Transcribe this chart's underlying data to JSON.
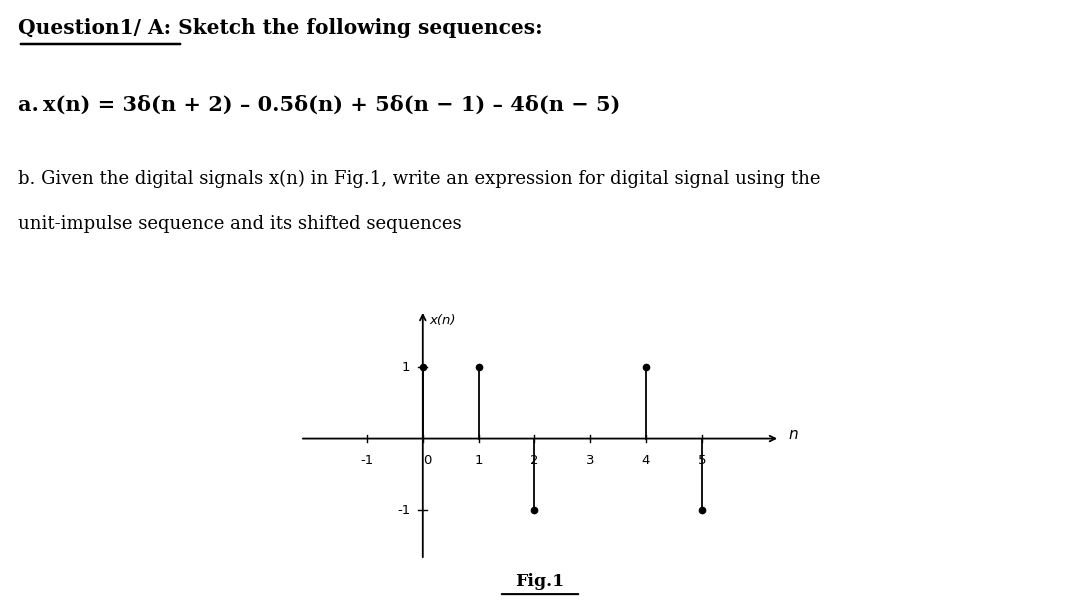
{
  "title_text": "Question1/ A: Sketch the following sequences:",
  "title_underline_part": "Question1/ A:",
  "eq_line": "a. x(n) = 3δ(n + 2) – 0.5δ(n) + 5δ(n − 1) – 4δ(n − 5)",
  "part_b_line1": "b. Given the digital signals x(n) in Fig.1, write an expression for digital signal using the",
  "part_b_line2": "unit-impulse sequence and its shifted sequences",
  "fig_label": "Fig.1",
  "xlabel": "n",
  "ylabel": "x(n)",
  "n_values": [
    -1,
    0,
    1,
    2,
    3,
    4,
    5
  ],
  "x_values": [
    0,
    1,
    1,
    -1,
    0,
    1,
    -1
  ],
  "xlim": [
    -2.2,
    6.4
  ],
  "ylim": [
    -1.7,
    1.8
  ],
  "ytick_vals": [
    -1,
    1
  ],
  "xtick_vals": [
    -1,
    0,
    1,
    2,
    3,
    4,
    5
  ],
  "background_color": "#ffffff",
  "stem_color": "#000000",
  "dot_color": "#000000",
  "axis_color": "#000000",
  "text_color": "#000000",
  "fig_width": 10.8,
  "fig_height": 6.05,
  "dpi": 100
}
